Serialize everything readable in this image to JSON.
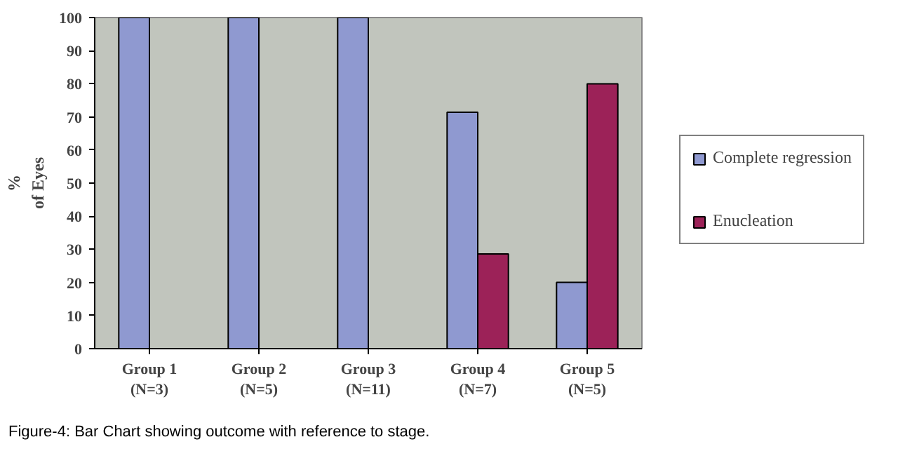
{
  "chart_data": {
    "type": "bar",
    "categories": [
      "Group 1\n(N=3)",
      "Group 2\n(N=5)",
      "Group 3\n(N=11)",
      "Group 4\n(N=7)",
      "Group 5\n(N=5)"
    ],
    "series": [
      {
        "name": "Complete regression",
        "color": "#8f99d0",
        "values": [
          100,
          100,
          100,
          71.4,
          20
        ]
      },
      {
        "name": "Enucleation",
        "color": "#9c2258",
        "values": [
          0,
          0,
          0,
          28.6,
          80
        ]
      }
    ],
    "ylabel": "%\nof Eyes",
    "ylim": [
      0,
      100
    ],
    "yticks": [
      0,
      10,
      20,
      30,
      40,
      50,
      60,
      70,
      80,
      90,
      100
    ],
    "grid": false,
    "legend": "right",
    "annotations": [
      "Figure-4: Bar Chart showing outcome with reference to stage."
    ]
  }
}
